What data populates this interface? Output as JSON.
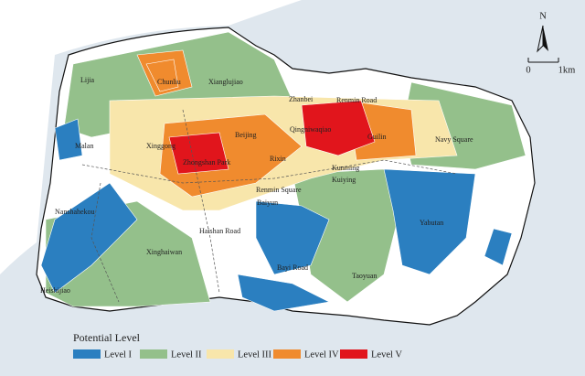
{
  "map": {
    "places": [
      "Lijia",
      "Chunliu",
      "Xianglujiao",
      "Zhanbei",
      "Renmin Road",
      "Malan",
      "Xinggong",
      "Beijing",
      "Qingniwaqiao",
      "Guilin",
      "Navy Square",
      "Zhongshan Park",
      "Rixin",
      "Kunming",
      "Renmin Square",
      "Kuiying",
      "Nanshahekou",
      "Baiyun",
      "Haishan Road",
      "Xinghaiwan",
      "Yabutan",
      "Bayi Road",
      "Taoyuan",
      "Heishijiao"
    ],
    "north": "N",
    "scale": [
      "0",
      "1km"
    ],
    "legend": {
      "title": "Potential Level",
      "items": [
        {
          "label": "Level I",
          "color": "#2b7fc0"
        },
        {
          "label": "Level II",
          "color": "#94c08b"
        },
        {
          "label": "Level III",
          "color": "#f8e6ab"
        },
        {
          "label": "Level IV",
          "color": "#f08b2e"
        },
        {
          "label": "Level V",
          "color": "#e1151c"
        }
      ]
    }
  }
}
